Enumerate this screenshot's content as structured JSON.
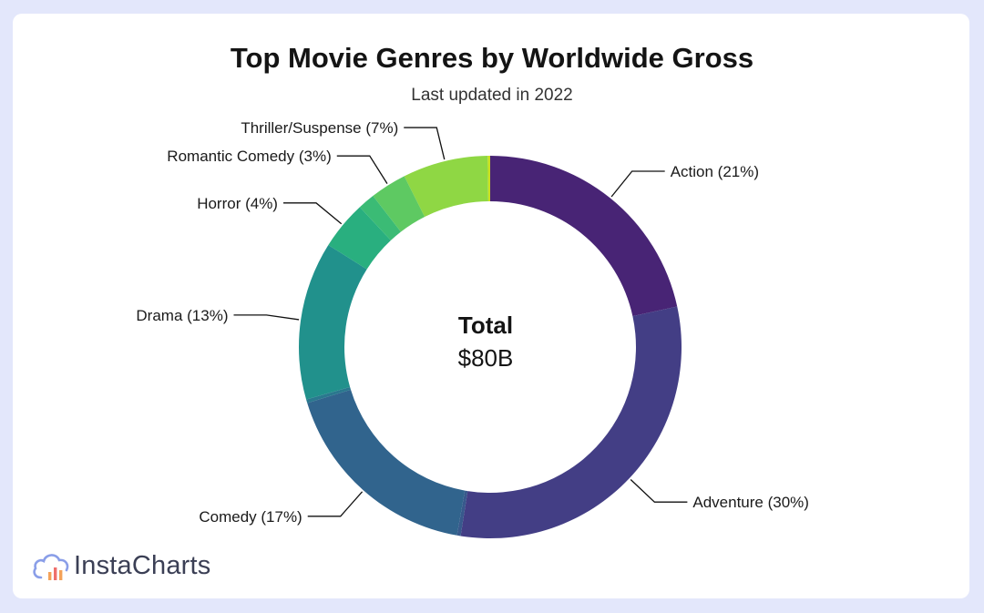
{
  "chart_data": {
    "type": "pie",
    "title": "Top Movie Genres by Worldwide Gross",
    "subtitle": "Last updated in 2022",
    "center": {
      "title": "Total",
      "value": "$80B"
    },
    "slices": [
      {
        "label": "Action (21%)",
        "value": 21,
        "color": "#482475"
      },
      {
        "label": "Adventure (30%)",
        "value": 30,
        "color": "#433e85"
      },
      {
        "label": "",
        "value": 0.3,
        "color": "#38598c"
      },
      {
        "label": "Comedy (17%)",
        "value": 17,
        "color": "#31648d"
      },
      {
        "label": "",
        "value": 0.3,
        "color": "#2a788e"
      },
      {
        "label": "Drama (13%)",
        "value": 13,
        "color": "#21918c"
      },
      {
        "label": "Horror (4%)",
        "value": 4,
        "color": "#29af7f"
      },
      {
        "label": "",
        "value": 1.4,
        "color": "#3bbb75"
      },
      {
        "label": "Romantic Comedy (3%)",
        "value": 3,
        "color": "#5ec962"
      },
      {
        "label": "Thriller/Suspense (7%)",
        "value": 7,
        "color": "#8fd744"
      },
      {
        "label": "",
        "value": 0.2,
        "color": "#c8e020"
      }
    ]
  },
  "brand": {
    "name": "InstaCharts"
  }
}
